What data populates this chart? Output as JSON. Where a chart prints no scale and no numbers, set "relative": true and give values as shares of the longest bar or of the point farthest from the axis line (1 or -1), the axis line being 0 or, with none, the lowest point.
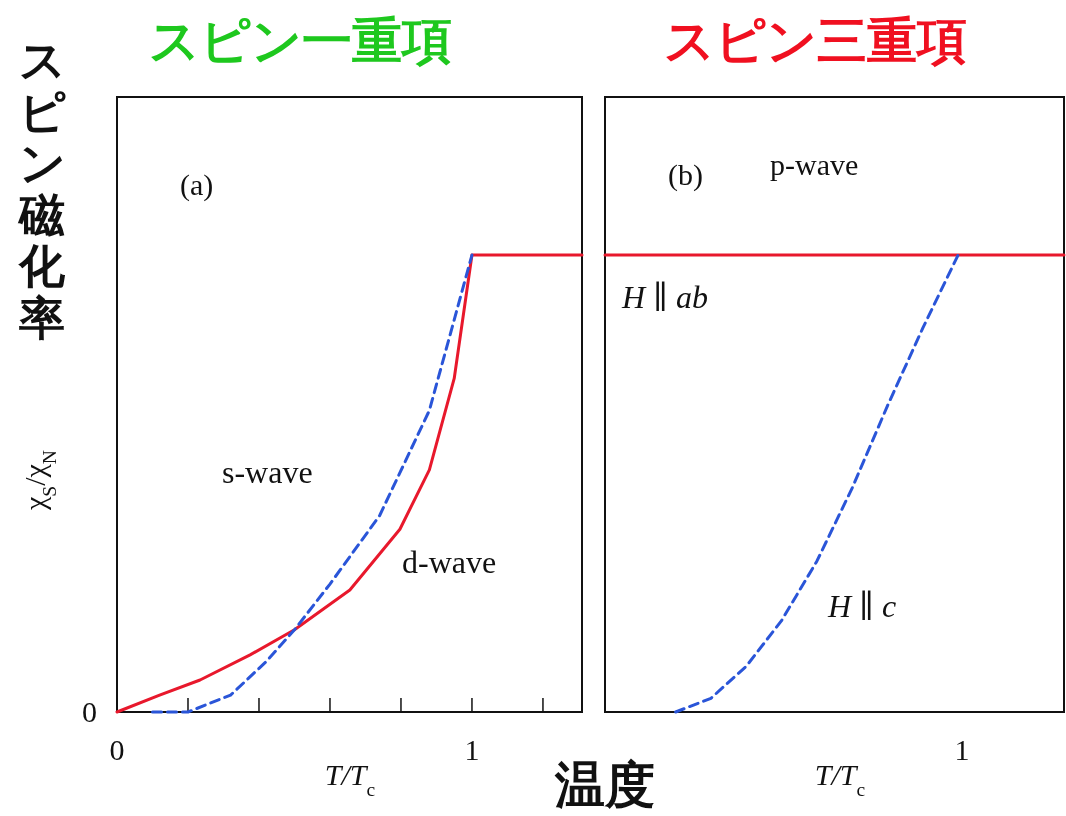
{
  "chart_data": [
    {
      "type": "line",
      "title": "スピン一重項",
      "xlabel": "T/T$_{c}$",
      "ylabel": "χ$_{S}$/χ$_{N}$",
      "relative": true,
      "xlim": [
        0,
        1.31
      ],
      "xticks": [
        0,
        {
          "value": 0.2,
          "label": null
        },
        {
          "value": 0.4,
          "label": null
        },
        {
          "value": 0.6,
          "label": null
        },
        {
          "value": 0.8,
          "label": null
        },
        1,
        {
          "value": 1.2,
          "label": null
        }
      ],
      "annotations": [
        "(a)",
        "スピン磁化率",
        "温度",
        "0"
      ],
      "series": [
        {
          "name": "d-wave",
          "color": "#e8182c",
          "line_style": "solid",
          "x": [
            0,
            0.12,
            0.234,
            0.375,
            0.5,
            0.656,
            0.797,
            0.88,
            0.95,
            1.0,
            1.31
          ],
          "values": [
            0,
            0.037,
            0.07,
            0.125,
            0.18,
            0.267,
            0.4,
            0.53,
            0.73,
            1.0,
            1.0
          ]
        },
        {
          "name": "s-wave",
          "color": "#2a55d8",
          "line_style": "dashed",
          "x": [
            0.1,
            0.2,
            0.32,
            0.42,
            0.5,
            0.6,
            0.74,
            0.88,
            1.0
          ],
          "values": [
            0,
            0,
            0.037,
            0.11,
            0.18,
            0.28,
            0.43,
            0.66,
            1.0
          ]
        }
      ]
    },
    {
      "type": "line",
      "title": "スピン三重項",
      "xlabel": "T/T$_{c}$",
      "relative": true,
      "categories": [
        null,
        null,
        null,
        null,
        null,
        null,
        null,
        null,
        null,
        null,
        null,
        null,
        null,
        null
      ],
      "annotations": [
        "(b)",
        "p-wave",
        "1"
      ],
      "series": [
        {
          "name": "H ∥ ab",
          "color": "#e8182c",
          "line_style": "solid",
          "values": [
            1,
            1,
            1,
            1,
            1,
            1,
            1,
            1,
            1,
            1,
            1,
            1,
            1,
            1
          ]
        },
        {
          "name": "H ∥ c",
          "color": "#2a55d8",
          "line_style": "dashed",
          "values": [
            null,
            null,
            0,
            0.03,
            0.1,
            0.2,
            0.33,
            0.49,
            0.67,
            0.84,
            1,
            null,
            null,
            null
          ]
        }
      ]
    }
  ]
}
